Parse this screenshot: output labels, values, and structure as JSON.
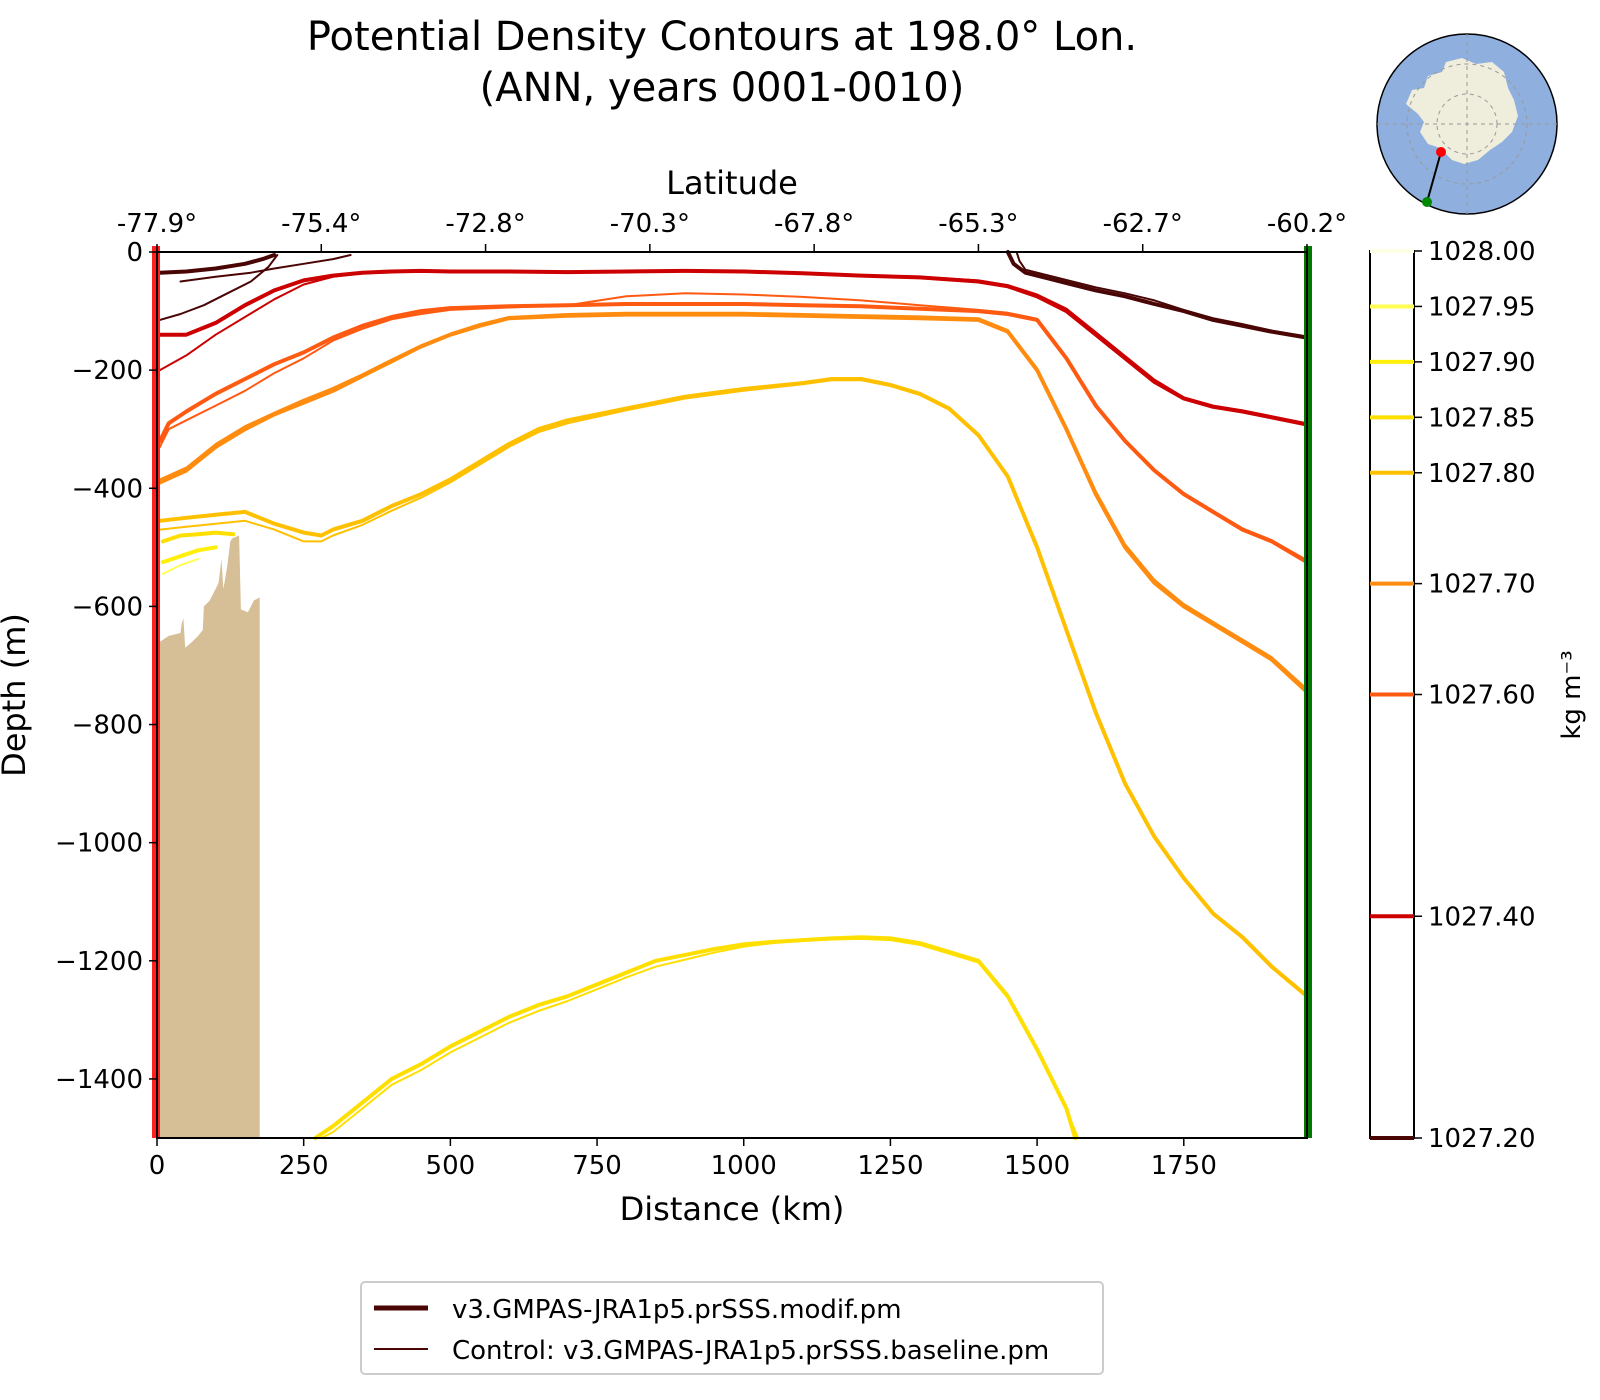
{
  "chart_data": {
    "type": "line",
    "title": "Potential Density Contours at 198.0° Lon.",
    "subtitle": "(ANN, years 0001-0010)",
    "xlabel": "Distance (km)",
    "ylabel": "Depth (m)",
    "top_axis_label": "Latitude",
    "xlim": [
      0,
      1960
    ],
    "ylim": [
      -1500,
      0
    ],
    "x_ticks": [
      0,
      250,
      500,
      750,
      1000,
      1250,
      1500,
      1750
    ],
    "x_tick_labels": [
      "0",
      "250",
      "500",
      "750",
      "1000",
      "1250",
      "1500",
      "1750"
    ],
    "y_ticks": [
      0,
      -200,
      -400,
      -600,
      -800,
      -1000,
      -1200,
      -1400
    ],
    "y_tick_labels": [
      "0",
      "−200",
      "−400",
      "−600",
      "−800",
      "−1000",
      "−1200",
      "−1400"
    ],
    "lat_ticks": [
      {
        "x": 0,
        "label": "-77.9°"
      },
      {
        "x": 280,
        "label": "-75.4°"
      },
      {
        "x": 560,
        "label": "-72.8°"
      },
      {
        "x": 840,
        "label": "-70.3°"
      },
      {
        "x": 1120,
        "label": "-67.8°"
      },
      {
        "x": 1400,
        "label": "-65.3°"
      },
      {
        "x": 1680,
        "label": "-62.7°"
      },
      {
        "x": 1960,
        "label": "-60.2°"
      }
    ],
    "colorbar": {
      "label": "kg m⁻³",
      "range": [
        1027.2,
        1028.0
      ],
      "levels": [
        {
          "value": 1028.0,
          "label": "1028.00",
          "color": "#ffffe6"
        },
        {
          "value": 1027.95,
          "label": "1027.95",
          "color": "#ffff55"
        },
        {
          "value": 1027.9,
          "label": "1027.90",
          "color": "#ffef0a"
        },
        {
          "value": 1027.85,
          "label": "1027.85",
          "color": "#ffdf00"
        },
        {
          "value": 1027.8,
          "label": "1027.80",
          "color": "#ffc000"
        },
        {
          "value": 1027.7,
          "label": "1027.70",
          "color": "#ff8c0f"
        },
        {
          "value": 1027.6,
          "label": "1027.60",
          "color": "#ff5a12"
        },
        {
          "value": 1027.4,
          "label": "1027.40",
          "color": "#cc0000"
        },
        {
          "value": 1027.2,
          "label": "1027.20",
          "color": "#4a0505"
        }
      ]
    },
    "legend": {
      "placement": "bottom-center",
      "entries": [
        {
          "label": "v3.GMPAS-JRA1p5.prSSS.modif.pm",
          "style": "thick"
        },
        {
          "label": "Control: v3.GMPAS-JRA1p5.prSSS.baseline.pm",
          "style": "thin"
        }
      ]
    },
    "section_start_marker": {
      "x": 0,
      "color": "#ff2020"
    },
    "section_end_marker": {
      "x": 1960,
      "color": "#007a00"
    },
    "bathymetry": {
      "color": "#d6be96",
      "points": [
        [
          0,
          -1500
        ],
        [
          5,
          -1500
        ],
        [
          5,
          -660
        ],
        [
          20,
          -650
        ],
        [
          40,
          -645
        ],
        [
          42,
          -630
        ],
        [
          45,
          -620
        ],
        [
          48,
          -670
        ],
        [
          60,
          -660
        ],
        [
          70,
          -650
        ],
        [
          78,
          -640
        ],
        [
          80,
          -600
        ],
        [
          90,
          -590
        ],
        [
          95,
          -580
        ],
        [
          100,
          -570
        ],
        [
          105,
          -560
        ],
        [
          110,
          -520
        ],
        [
          113,
          -570
        ],
        [
          115,
          -560
        ],
        [
          120,
          -530
        ],
        [
          125,
          -490
        ],
        [
          128,
          -485
        ],
        [
          140,
          -480
        ],
        [
          143,
          -605
        ],
        [
          155,
          -610
        ],
        [
          160,
          -600
        ],
        [
          165,
          -590
        ],
        [
          175,
          -585
        ],
        [
          175,
          -1500
        ]
      ]
    },
    "series": [
      {
        "name": "1027.20 modif west",
        "level": 1027.2,
        "run": "modif",
        "x": [
          5,
          50,
          100,
          150,
          180,
          200
        ],
        "y": [
          -35,
          -33,
          -28,
          -20,
          -12,
          -5
        ]
      },
      {
        "name": "1027.20 control west",
        "level": 1027.2,
        "run": "control",
        "x": [
          5,
          40,
          80,
          120,
          160,
          190,
          205
        ],
        "y": [
          -115,
          -105,
          -90,
          -70,
          -50,
          -25,
          -5
        ]
      },
      {
        "name": "1027.20 control west 2",
        "level": 1027.2,
        "run": "control",
        "x": [
          40,
          100,
          160,
          200,
          250,
          300,
          330
        ],
        "y": [
          -50,
          -42,
          -35,
          -28,
          -20,
          -12,
          -5
        ]
      },
      {
        "name": "1027.20 modif east",
        "level": 1027.2,
        "run": "modif",
        "x": [
          1450,
          1455,
          1460,
          1480,
          1520,
          1560,
          1600,
          1650,
          1700,
          1750,
          1800,
          1850,
          1900,
          1960
        ],
        "y": [
          0,
          -10,
          -20,
          -35,
          -45,
          -55,
          -65,
          -75,
          -88,
          -100,
          -115,
          -125,
          -135,
          -145
        ]
      },
      {
        "name": "1027.20 control east",
        "level": 1027.2,
        "run": "control",
        "x": [
          1465,
          1470,
          1480,
          1520,
          1560,
          1600,
          1650,
          1700,
          1750,
          1800,
          1850,
          1900,
          1960
        ],
        "y": [
          0,
          -15,
          -30,
          -40,
          -50,
          -60,
          -70,
          -82,
          -98,
          -112,
          -122,
          -133,
          -143
        ]
      },
      {
        "name": "1027.40 modif west",
        "level": 1027.4,
        "run": "modif",
        "x": [
          5,
          50,
          100,
          150,
          200,
          250,
          300,
          350,
          400,
          450,
          500,
          600,
          700,
          800,
          900,
          1000,
          1100,
          1200,
          1300,
          1400,
          1450,
          1500,
          1550,
          1600,
          1650,
          1700,
          1750,
          1800,
          1850,
          1900,
          1960
        ],
        "y": [
          -140,
          -140,
          -120,
          -90,
          -65,
          -48,
          -40,
          -35,
          -33,
          -32,
          -33,
          -33,
          -34,
          -33,
          -32,
          -33,
          -36,
          -40,
          -43,
          -50,
          -58,
          -75,
          -100,
          -140,
          -180,
          -220,
          -248,
          -262,
          -270,
          -280,
          -292
        ]
      },
      {
        "name": "1027.40 control west",
        "level": 1027.4,
        "run": "control",
        "x": [
          5,
          50,
          100,
          150,
          200,
          250,
          300,
          350,
          400,
          450,
          500,
          600,
          700,
          800,
          900,
          1000,
          1100,
          1200,
          1300,
          1400,
          1450,
          1500,
          1550,
          1600,
          1650,
          1700,
          1750,
          1800,
          1850,
          1900,
          1960
        ],
        "y": [
          -200,
          -175,
          -140,
          -110,
          -80,
          -55,
          -42,
          -36,
          -34,
          -32,
          -33,
          -34,
          -35,
          -33,
          -31,
          -32,
          -35,
          -39,
          -42,
          -48,
          -56,
          -72,
          -96,
          -136,
          -176,
          -216,
          -246,
          -260,
          -268,
          -278,
          -290
        ]
      },
      {
        "name": "1027.60 modif",
        "level": 1027.6,
        "run": "modif",
        "x": [
          5,
          20,
          50,
          100,
          150,
          200,
          250,
          300,
          350,
          400,
          450,
          500,
          600,
          700,
          800,
          900,
          1000,
          1100,
          1200,
          1300,
          1400,
          1450,
          1500,
          1550,
          1600,
          1650,
          1700,
          1750,
          1800,
          1850,
          1900,
          1960
        ],
        "y": [
          -320,
          -290,
          -270,
          -240,
          -215,
          -190,
          -170,
          -145,
          -125,
          -110,
          -100,
          -95,
          -92,
          -90,
          -88,
          -88,
          -88,
          -90,
          -92,
          -96,
          -100,
          -105,
          -115,
          -180,
          -260,
          -320,
          -370,
          -410,
          -440,
          -470,
          -490,
          -525
        ]
      },
      {
        "name": "1027.60 control",
        "level": 1027.6,
        "run": "control",
        "x": [
          5,
          20,
          50,
          100,
          150,
          200,
          250,
          300,
          350,
          400,
          450,
          500,
          600,
          700,
          800,
          900,
          1000,
          1100,
          1200,
          1300,
          1400,
          1450,
          1500,
          1550,
          1600,
          1650,
          1700,
          1750,
          1800,
          1850,
          1900,
          1960
        ],
        "y": [
          -330,
          -300,
          -285,
          -260,
          -235,
          -205,
          -180,
          -150,
          -130,
          -114,
          -105,
          -98,
          -94,
          -90,
          -75,
          -70,
          -72,
          -76,
          -82,
          -90,
          -98,
          -103,
          -113,
          -178,
          -258,
          -318,
          -368,
          -408,
          -438,
          -468,
          -488,
          -522
        ]
      },
      {
        "name": "1027.70 modif",
        "level": 1027.7,
        "run": "modif",
        "x": [
          5,
          50,
          100,
          150,
          200,
          250,
          300,
          350,
          400,
          450,
          500,
          550,
          600,
          700,
          800,
          900,
          1000,
          1100,
          1200,
          1300,
          1400,
          1450,
          1500,
          1550,
          1600,
          1650,
          1700,
          1750,
          1800,
          1850,
          1900,
          1960
        ],
        "y": [
          -390,
          -370,
          -330,
          -300,
          -275,
          -255,
          -235,
          -210,
          -185,
          -160,
          -140,
          -125,
          -112,
          -108,
          -106,
          -106,
          -106,
          -108,
          -110,
          -112,
          -115,
          -135,
          -200,
          -300,
          -410,
          -500,
          -560,
          -600,
          -630,
          -660,
          -690,
          -745
        ]
      },
      {
        "name": "1027.70 control",
        "level": 1027.7,
        "run": "control",
        "x": [
          5,
          50,
          100,
          150,
          200,
          250,
          300,
          350,
          400,
          450,
          500,
          550,
          600,
          700,
          800,
          900,
          1000,
          1100,
          1200,
          1300,
          1400,
          1450,
          1500,
          1550,
          1600,
          1650,
          1700,
          1750,
          1800,
          1850,
          1900,
          1960
        ],
        "y": [
          -385,
          -365,
          -325,
          -295,
          -272,
          -250,
          -230,
          -207,
          -182,
          -158,
          -138,
          -122,
          -110,
          -105,
          -103,
          -103,
          -103,
          -105,
          -107,
          -109,
          -112,
          -132,
          -197,
          -297,
          -405,
          -495,
          -555,
          -596,
          -626,
          -656,
          -686,
          -740
        ]
      },
      {
        "name": "1027.80 modif",
        "level": 1027.8,
        "run": "modif",
        "x": [
          5,
          50,
          100,
          150,
          200,
          250,
          280,
          300,
          350,
          400,
          450,
          500,
          550,
          600,
          650,
          700,
          800,
          900,
          1000,
          1100,
          1150,
          1200,
          1250,
          1300,
          1350,
          1400,
          1450,
          1500,
          1550,
          1600,
          1650,
          1700,
          1750,
          1800,
          1850,
          1900,
          1960
        ],
        "y": [
          -455,
          -450,
          -445,
          -440,
          -460,
          -475,
          -480,
          -470,
          -455,
          -430,
          -410,
          -385,
          -355,
          -325,
          -300,
          -285,
          -265,
          -245,
          -232,
          -222,
          -215,
          -215,
          -225,
          -240,
          -265,
          -310,
          -380,
          -500,
          -640,
          -780,
          -900,
          -990,
          -1060,
          -1120,
          -1160,
          -1210,
          -1260
        ]
      },
      {
        "name": "1027.80 control",
        "level": 1027.8,
        "run": "control",
        "x": [
          5,
          50,
          100,
          150,
          200,
          250,
          280,
          300,
          350,
          400,
          450,
          500,
          550,
          600,
          650,
          700,
          800,
          900,
          1000,
          1100,
          1150,
          1200,
          1250,
          1300,
          1350,
          1400,
          1450,
          1500,
          1550,
          1600,
          1650,
          1700,
          1750,
          1800,
          1850,
          1900,
          1960
        ],
        "y": [
          -470,
          -465,
          -460,
          -455,
          -470,
          -490,
          -490,
          -480,
          -462,
          -438,
          -416,
          -390,
          -360,
          -330,
          -305,
          -290,
          -268,
          -248,
          -235,
          -224,
          -217,
          -217,
          -227,
          -242,
          -267,
          -312,
          -382,
          -502,
          -642,
          -782,
          -902,
          -992,
          -1062,
          -1122,
          -1162,
          -1212,
          -1262
        ]
      },
      {
        "name": "1027.85 west",
        "level": 1027.85,
        "run": "modif",
        "x": [
          10,
          40,
          70,
          100,
          130
        ],
        "y": [
          -490,
          -480,
          -478,
          -475,
          -478
        ]
      },
      {
        "name": "1027.90 west",
        "level": 1027.9,
        "run": "modif",
        "x": [
          10,
          40,
          70,
          100
        ],
        "y": [
          -525,
          -515,
          -505,
          -500
        ]
      },
      {
        "name": "1027.95 west",
        "level": 1027.95,
        "run": "control",
        "x": [
          10,
          40,
          70
        ],
        "y": [
          -545,
          -530,
          -520
        ]
      },
      {
        "name": "1027.85 modif deep",
        "level": 1027.85,
        "run": "modif",
        "x": [
          270,
          300,
          350,
          400,
          450,
          500,
          550,
          600,
          650,
          700,
          750,
          800,
          850,
          900,
          950,
          1000,
          1050,
          1100,
          1150,
          1200,
          1250,
          1300,
          1350,
          1400,
          1450,
          1500,
          1550,
          1565
        ],
        "y": [
          -1500,
          -1480,
          -1440,
          -1400,
          -1375,
          -1345,
          -1320,
          -1295,
          -1275,
          -1260,
          -1240,
          -1220,
          -1200,
          -1190,
          -1180,
          -1172,
          -1168,
          -1165,
          -1162,
          -1160,
          -1162,
          -1170,
          -1185,
          -1200,
          -1260,
          -1350,
          -1450,
          -1500
        ]
      },
      {
        "name": "1027.85 control deep",
        "level": 1027.85,
        "run": "control",
        "x": [
          280,
          300,
          350,
          400,
          450,
          500,
          550,
          600,
          650,
          700,
          750,
          800,
          850,
          900,
          950,
          1000,
          1050,
          1100,
          1150,
          1200,
          1250,
          1300,
          1350,
          1400,
          1450,
          1500,
          1550,
          1570
        ],
        "y": [
          -1500,
          -1490,
          -1450,
          -1410,
          -1385,
          -1355,
          -1330,
          -1305,
          -1285,
          -1268,
          -1248,
          -1228,
          -1210,
          -1198,
          -1186,
          -1176,
          -1170,
          -1166,
          -1164,
          -1163,
          -1165,
          -1173,
          -1188,
          -1203,
          -1263,
          -1353,
          -1453,
          -1500
        ]
      }
    ]
  }
}
